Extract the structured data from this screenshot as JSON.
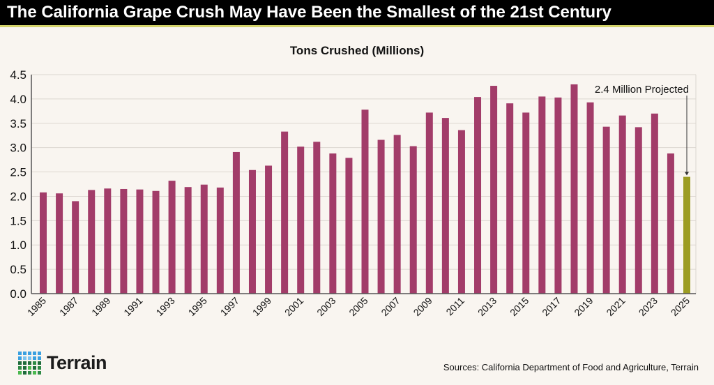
{
  "title": "The California Grape Crush May Have Been the Smallest of the 21st Century",
  "source": "Sources: California Department of Food and Agriculture, Terrain",
  "logo": "Terrain",
  "colors": {
    "bar": "#a23c69",
    "projected": "#9c9c22",
    "title_bg": "#000000",
    "accent_line": "#d3d36b",
    "background": "#f9f5f0"
  },
  "chart_data": {
    "type": "bar",
    "title": "Tons Crushed (Millions)",
    "xlabel": "",
    "ylabel": "",
    "ylim": [
      0,
      4.5
    ],
    "yticks": [
      "0.0",
      "0.5",
      "1.0",
      "1.5",
      "2.0",
      "2.5",
      "3.0",
      "3.5",
      "4.0",
      "4.5"
    ],
    "grid": true,
    "categories": [
      1985,
      1986,
      1987,
      1988,
      1989,
      1990,
      1991,
      1992,
      1993,
      1994,
      1995,
      1996,
      1997,
      1998,
      1999,
      2000,
      2001,
      2002,
      2003,
      2004,
      2005,
      2006,
      2007,
      2008,
      2009,
      2010,
      2011,
      2012,
      2013,
      2014,
      2015,
      2016,
      2017,
      2018,
      2019,
      2020,
      2021,
      2022,
      2023,
      2024,
      2025
    ],
    "xtick_labels": [
      "1985",
      "1987",
      "1989",
      "1991",
      "1993",
      "1995",
      "1997",
      "1999",
      "2001",
      "2003",
      "2005",
      "2007",
      "2009",
      "2011",
      "2013",
      "2015",
      "2017",
      "2019",
      "2021",
      "2023",
      "2025"
    ],
    "values": [
      2.08,
      2.06,
      1.9,
      2.13,
      2.16,
      2.15,
      2.14,
      2.11,
      2.32,
      2.19,
      2.24,
      2.18,
      2.91,
      2.54,
      2.63,
      3.33,
      3.02,
      3.12,
      2.88,
      2.79,
      3.78,
      3.16,
      3.26,
      3.03,
      3.72,
      3.61,
      3.36,
      4.04,
      4.27,
      3.91,
      3.72,
      4.05,
      4.03,
      4.3,
      3.93,
      3.43,
      3.66,
      3.42,
      3.7,
      2.88,
      2.4
    ],
    "projected": [
      2025
    ],
    "annotation": {
      "text": "2.4 Million Projected",
      "target": 2025
    }
  }
}
